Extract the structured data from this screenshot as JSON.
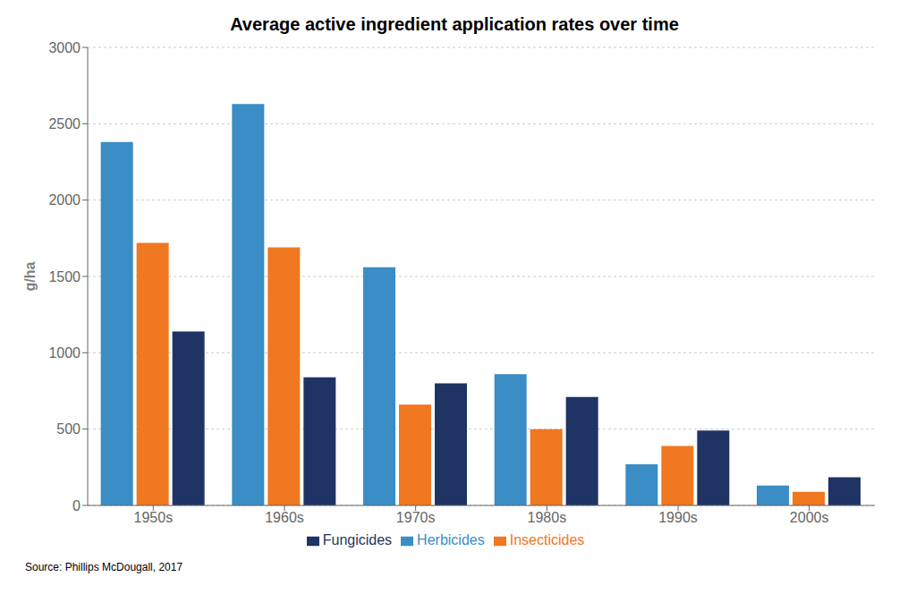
{
  "chart_data": {
    "type": "bar",
    "title": "Average active ingredient application rates over time",
    "ylabel": "g/ha",
    "categories": [
      "1950s",
      "1960s",
      "1970s",
      "1980s",
      "1990s",
      "2000s"
    ],
    "series": [
      {
        "name": "Herbicides",
        "color": "#3A8DC5",
        "values": [
          2380,
          2630,
          1560,
          860,
          270,
          130
        ]
      },
      {
        "name": "Insecticides",
        "color": "#F07820",
        "values": [
          1720,
          1690,
          660,
          500,
          390,
          90
        ]
      },
      {
        "name": "Fungicides",
        "color": "#1F3464",
        "values": [
          1140,
          840,
          800,
          710,
          490,
          185
        ]
      }
    ],
    "ylim": [
      0,
      3000
    ],
    "yticks": [
      0,
      500,
      1000,
      1500,
      2000,
      2500,
      3000
    ],
    "grid": true,
    "legend": "bottom",
    "annotations": [
      "Source: Phillips McDougall, 2017"
    ]
  }
}
